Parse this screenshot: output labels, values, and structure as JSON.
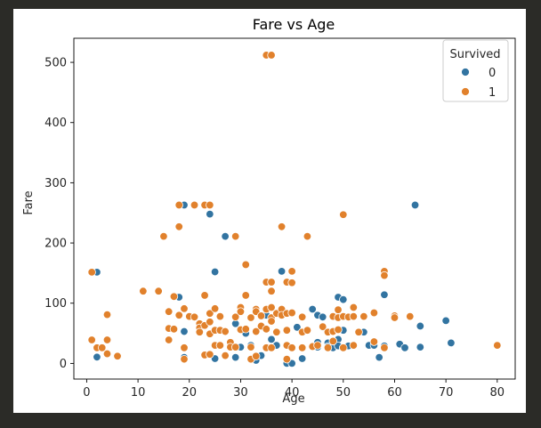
{
  "chart_data": {
    "type": "scatter",
    "title": "Fare vs Age",
    "xlabel": "Age",
    "ylabel": "Fare",
    "xlim": [
      -2.5,
      83.5
    ],
    "ylim": [
      -26,
      540
    ],
    "xticks": [
      0,
      10,
      20,
      30,
      40,
      50,
      60,
      70,
      80
    ],
    "yticks": [
      0,
      100,
      200,
      300,
      400,
      500
    ],
    "grid": false,
    "legend": {
      "title": "Survived",
      "placement": "top-right",
      "entries": [
        {
          "label": "0",
          "color": "#3274a1"
        },
        {
          "label": "1",
          "color": "#e1812c"
        }
      ]
    },
    "series": [
      {
        "name": "0",
        "color": "#3274a1",
        "points": [
          [
            2,
            151.5
          ],
          [
            2,
            10.5
          ],
          [
            18,
            110
          ],
          [
            19,
            263
          ],
          [
            19,
            53
          ],
          [
            19,
            10
          ],
          [
            24,
            248
          ],
          [
            25,
            152
          ],
          [
            25,
            8
          ],
          [
            27,
            211
          ],
          [
            28,
            29
          ],
          [
            29,
            66
          ],
          [
            29,
            10
          ],
          [
            30,
            27
          ],
          [
            31,
            50
          ],
          [
            32,
            30
          ],
          [
            33,
            8
          ],
          [
            33,
            5
          ],
          [
            34,
            13
          ],
          [
            35,
            26
          ],
          [
            35,
            80
          ],
          [
            36,
            40
          ],
          [
            37,
            30
          ],
          [
            38,
            153
          ],
          [
            39,
            0
          ],
          [
            40,
            0
          ],
          [
            41,
            60
          ],
          [
            42,
            8
          ],
          [
            44,
            90
          ],
          [
            45,
            80
          ],
          [
            45,
            27
          ],
          [
            45,
            35
          ],
          [
            46,
            77
          ],
          [
            46,
            60
          ],
          [
            47,
            52
          ],
          [
            47,
            34
          ],
          [
            47,
            28
          ],
          [
            48,
            26
          ],
          [
            49,
            110
          ],
          [
            49,
            40
          ],
          [
            49,
            29
          ],
          [
            50,
            106
          ],
          [
            50,
            55
          ],
          [
            50,
            26
          ],
          [
            51,
            29
          ],
          [
            54,
            52
          ],
          [
            55,
            30
          ],
          [
            56,
            30
          ],
          [
            57,
            10
          ],
          [
            58,
            114
          ],
          [
            58,
            29
          ],
          [
            61,
            32
          ],
          [
            62,
            26
          ],
          [
            64,
            263
          ],
          [
            65,
            62
          ],
          [
            65,
            27
          ],
          [
            70,
            71
          ],
          [
            71,
            34
          ]
        ]
      },
      {
        "name": "1",
        "color": "#e1812c",
        "points": [
          [
            1,
            151.5
          ],
          [
            1,
            39
          ],
          [
            2,
            26
          ],
          [
            3,
            26
          ],
          [
            4,
            81
          ],
          [
            4,
            39
          ],
          [
            4,
            16
          ],
          [
            6,
            12
          ],
          [
            11,
            120
          ],
          [
            14,
            120
          ],
          [
            15,
            211
          ],
          [
            16,
            86
          ],
          [
            16,
            58
          ],
          [
            16,
            39
          ],
          [
            17,
            111
          ],
          [
            17,
            57
          ],
          [
            18,
            263
          ],
          [
            18,
            227
          ],
          [
            18,
            80
          ],
          [
            19,
            91
          ],
          [
            19,
            26
          ],
          [
            19,
            7
          ],
          [
            20,
            78
          ],
          [
            21,
            263
          ],
          [
            21,
            77
          ],
          [
            22,
            66
          ],
          [
            22,
            59
          ],
          [
            22,
            52
          ],
          [
            23,
            263
          ],
          [
            23,
            113
          ],
          [
            23,
            63
          ],
          [
            23,
            14
          ],
          [
            24,
            263
          ],
          [
            24,
            83
          ],
          [
            24,
            69
          ],
          [
            24,
            49
          ],
          [
            24,
            15
          ],
          [
            25,
            91
          ],
          [
            25,
            55
          ],
          [
            25,
            30
          ],
          [
            26,
            78
          ],
          [
            26,
            55
          ],
          [
            26,
            30
          ],
          [
            27,
            53
          ],
          [
            27,
            13
          ],
          [
            28,
            35
          ],
          [
            28,
            27
          ],
          [
            29,
            211
          ],
          [
            29,
            77
          ],
          [
            29,
            27
          ],
          [
            30,
            93
          ],
          [
            30,
            86
          ],
          [
            30,
            56
          ],
          [
            31,
            164
          ],
          [
            31,
            113
          ],
          [
            31,
            57
          ],
          [
            32,
            76
          ],
          [
            32,
            27
          ],
          [
            32,
            7
          ],
          [
            33,
            90
          ],
          [
            33,
            86
          ],
          [
            33,
            53
          ],
          [
            33,
            12
          ],
          [
            34,
            79
          ],
          [
            34,
            62
          ],
          [
            35,
            512
          ],
          [
            35,
            135
          ],
          [
            35,
            90
          ],
          [
            35,
            57
          ],
          [
            35,
            26
          ],
          [
            36,
            512
          ],
          [
            36,
            135
          ],
          [
            36,
            120
          ],
          [
            36,
            93
          ],
          [
            36,
            76
          ],
          [
            36,
            70
          ],
          [
            36,
            26
          ],
          [
            37,
            83
          ],
          [
            37,
            52
          ],
          [
            38,
            227
          ],
          [
            38,
            90
          ],
          [
            38,
            80
          ],
          [
            39,
            135
          ],
          [
            39,
            83
          ],
          [
            39,
            55
          ],
          [
            39,
            30
          ],
          [
            39,
            7
          ],
          [
            40,
            153
          ],
          [
            40,
            134
          ],
          [
            40,
            84
          ],
          [
            40,
            26
          ],
          [
            42,
            77
          ],
          [
            42,
            52
          ],
          [
            42,
            26
          ],
          [
            43,
            211
          ],
          [
            43,
            55
          ],
          [
            44,
            28
          ],
          [
            45,
            30
          ],
          [
            46,
            61
          ],
          [
            47,
            52
          ],
          [
            47,
            26
          ],
          [
            48,
            78
          ],
          [
            48,
            53
          ],
          [
            48,
            37
          ],
          [
            49,
            89
          ],
          [
            49,
            76
          ],
          [
            49,
            56
          ],
          [
            50,
            247
          ],
          [
            50,
            78
          ],
          [
            50,
            26
          ],
          [
            51,
            77
          ],
          [
            52,
            93
          ],
          [
            52,
            78
          ],
          [
            52,
            30
          ],
          [
            53,
            52
          ],
          [
            54,
            78
          ],
          [
            56,
            84
          ],
          [
            56,
            36
          ],
          [
            58,
            153
          ],
          [
            58,
            146
          ],
          [
            58,
            26
          ],
          [
            60,
            79
          ],
          [
            60,
            76
          ],
          [
            63,
            78
          ],
          [
            80,
            30
          ]
        ]
      }
    ]
  }
}
